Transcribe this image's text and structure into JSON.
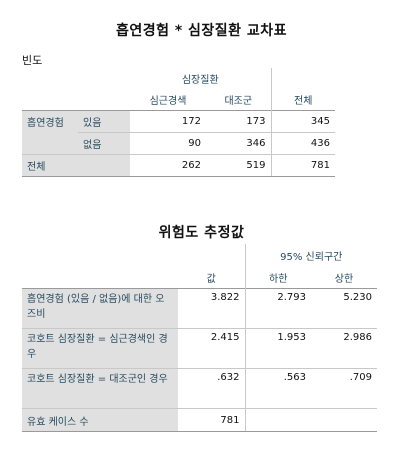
{
  "crosstab": {
    "title": "흡연경험 * 심장질환 교차표",
    "subtitle": "빈도",
    "col_group": "심장질환",
    "col_headers": [
      "심근경색",
      "대조군",
      "전체"
    ],
    "row_group": "흡연경험",
    "rows": [
      {
        "label": "있음",
        "values": [
          "172",
          "173",
          "345"
        ]
      },
      {
        "label": "없음",
        "values": [
          "90",
          "346",
          "436"
        ]
      }
    ],
    "total": {
      "label": "전체",
      "values": [
        "262",
        "519",
        "781"
      ]
    }
  },
  "risk": {
    "title": "위험도 추정값",
    "ci_header": "95% 신뢰구간",
    "col_value": "값",
    "col_lower": "하한",
    "col_upper": "상한",
    "rows": [
      {
        "label": "흡연경험 (있음 / 없음)에 대한 오즈비",
        "value": "3.822",
        "lower": "2.793",
        "upper": "5.230"
      },
      {
        "label": "코호트 심장질환 = 심근경색인 경우",
        "value": "2.415",
        "lower": "1.953",
        "upper": "2.986"
      },
      {
        "label": "코호트 심장질환 = 대조군인 경우",
        "value": ".632",
        "lower": ".563",
        "upper": ".709"
      }
    ],
    "valid_cases": {
      "label": "유효 케이스 수",
      "value": "781"
    }
  }
}
